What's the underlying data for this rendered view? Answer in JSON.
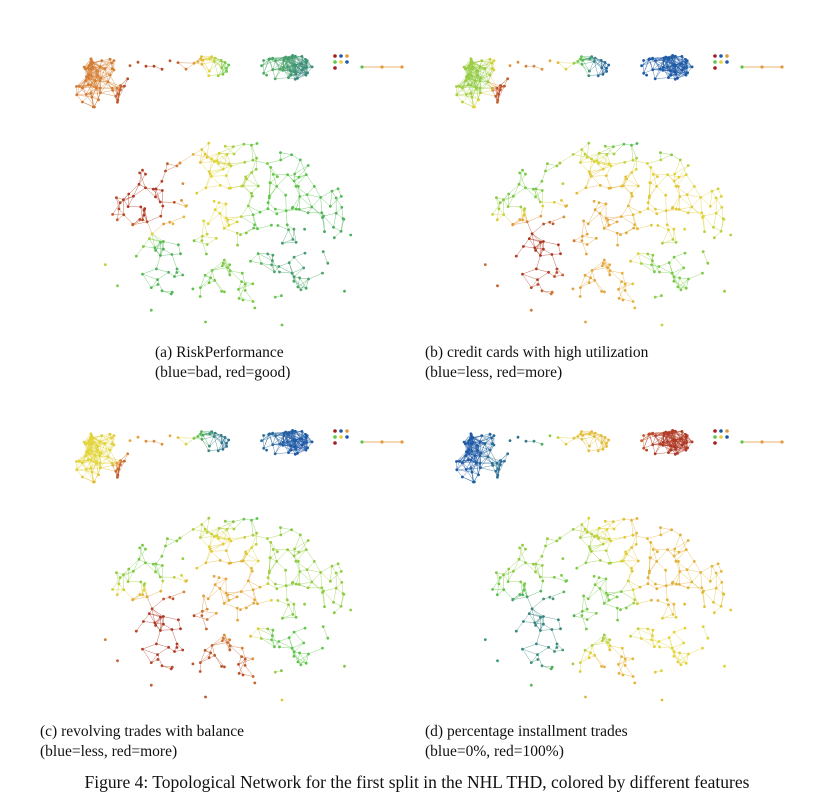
{
  "panels": [
    {
      "caption_1": "(a) RiskPerformance",
      "caption_2": "(blue=bad, red=good)",
      "scheme": "a"
    },
    {
      "caption_1": "(b) credit cards with high utilization",
      "caption_2": "(blue=less, red=more)",
      "scheme": "b"
    },
    {
      "caption_1": "(c) revolving trades with balance",
      "caption_2": "(blue=less, red=more)",
      "scheme": "c"
    },
    {
      "caption_1": "(d) percentage installment trades",
      "caption_2": "(blue=0%, red=100%)",
      "scheme": "d"
    }
  ],
  "figure_caption": "Figure 4: Topological Network for the first split in the NHL THD, colored by different features",
  "colors": {
    "blue": "#1f5aa6",
    "green": "#5cc64a",
    "yellow": "#e2d43a",
    "orange": "#e39a3c",
    "red": "#a11e1e",
    "edge": "#999999"
  }
}
